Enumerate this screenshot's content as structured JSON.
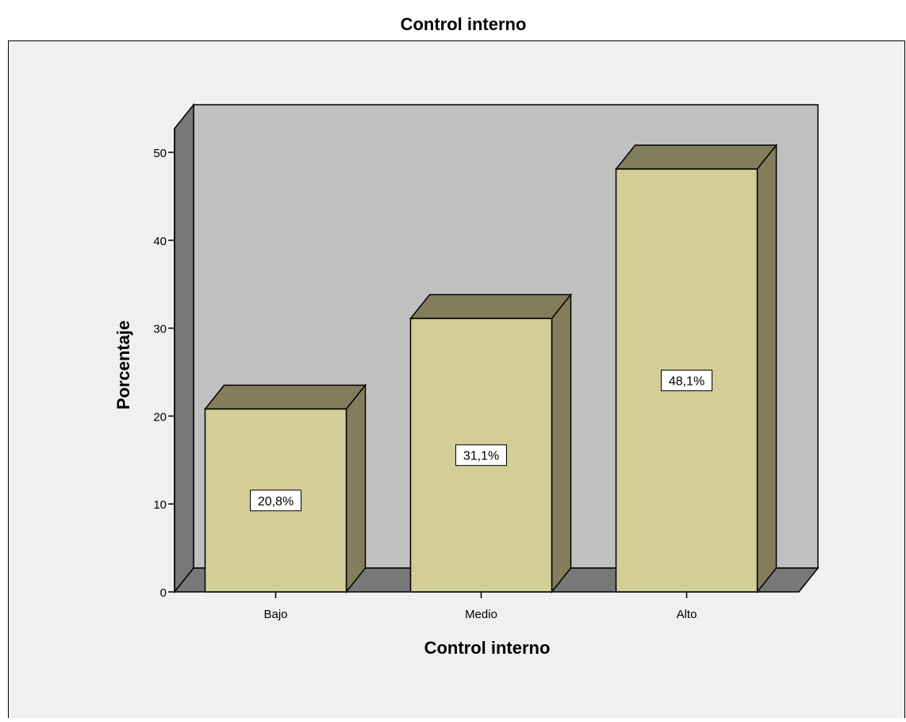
{
  "chart_data": {
    "type": "bar",
    "title": "Control interno",
    "xlabel": "Control interno",
    "ylabel": "Porcentaje",
    "categories": [
      "Bajo",
      "Medio",
      "Alto"
    ],
    "values": [
      20.8,
      31.1,
      48.1
    ],
    "data_labels": [
      "20,8%",
      "31,1%",
      "48,1%"
    ],
    "ylim": [
      0,
      50
    ],
    "yticks": [
      0,
      10,
      20,
      30,
      40,
      50
    ],
    "ytick_labels": [
      "0",
      "10",
      "20",
      "30",
      "40",
      "50"
    ],
    "grid": false,
    "legend": "none",
    "style": "3d",
    "colors": {
      "bar_front": "#d3cd98",
      "bar_top": "#827e5c",
      "bar_side": "#827e5c",
      "back_wall": "#c0c0c0",
      "side_wall": "#787878",
      "floor": "#787878",
      "plot_background": "#f0f0f0",
      "border": "#000000"
    }
  }
}
